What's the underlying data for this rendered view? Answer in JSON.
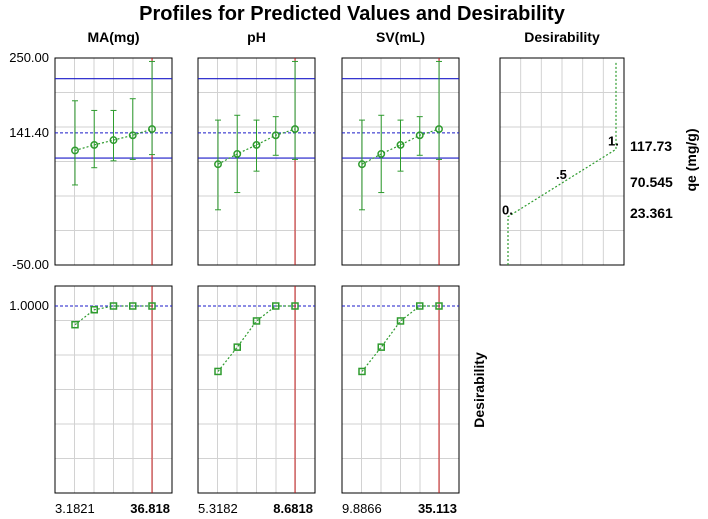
{
  "title": "Profiles for Predicted Values and Desirability",
  "colors": {
    "profile": "#2e9b2e",
    "limit_line": "#1a1ac8",
    "current_line": "#c81e1e",
    "grid": "#d2d2d2",
    "frame": "#000000"
  },
  "chart_data": {
    "type": "line",
    "title": "Profiles for Predicted Values and Desirability",
    "top_row": {
      "response": "qe (mg/g)",
      "ylim": [
        -50.0,
        250.0
      ],
      "y_tick_labels": [
        "250.00",
        "141.40",
        "-50.00"
      ],
      "current_value": 141.4,
      "limit_lines": [
        220.0,
        105.0
      ],
      "panels": [
        {
          "factor": "MA(mg)",
          "x_min_label": "3.1821",
          "x_max_label": "36.818",
          "x": [
            3.1821,
            11.591,
            20.0,
            28.409,
            36.818
          ],
          "y": [
            116,
            124,
            131,
            138,
            147
          ],
          "ci_low": [
            66,
            91,
            101,
            103,
            110
          ],
          "ci_high": [
            188,
            174,
            174,
            191,
            245
          ]
        },
        {
          "factor": "pH",
          "x_min_label": "5.3182",
          "x_max_label": "8.6818",
          "x": [
            5.3182,
            6.1591,
            7.0,
            7.8409,
            8.6818
          ],
          "y": [
            96,
            111,
            124,
            138,
            147
          ],
          "ci_low": [
            30,
            55,
            86,
            109,
            103
          ],
          "ci_high": [
            160,
            167,
            160,
            165,
            245
          ]
        },
        {
          "factor": "SV(mL)",
          "x_min_label": "9.8866",
          "x_max_label": "35.113",
          "x": [
            9.8866,
            16.193,
            22.5,
            28.806,
            35.113
          ],
          "y": [
            96,
            111,
            124,
            138,
            147
          ],
          "ci_low": [
            30,
            55,
            86,
            109,
            103
          ],
          "ci_high": [
            160,
            167,
            160,
            165,
            245
          ]
        }
      ]
    },
    "bottom_row": {
      "response": "Desirability",
      "ylim": [
        0.0,
        1.0
      ],
      "y_tick_labels": [
        "1.0000"
      ],
      "current_value": 1.0,
      "panels": [
        {
          "factor": "MA(mg)",
          "x": [
            3.1821,
            11.591,
            20.0,
            28.409,
            36.818
          ],
          "y": [
            0.9,
            0.98,
            1.0,
            1.0,
            1.0
          ]
        },
        {
          "factor": "pH",
          "x": [
            5.3182,
            6.1591,
            7.0,
            7.8409,
            8.6818
          ],
          "y": [
            0.65,
            0.78,
            0.92,
            1.0,
            1.0
          ]
        },
        {
          "factor": "SV(mL)",
          "x": [
            9.8866,
            16.193,
            22.5,
            28.806,
            35.113
          ],
          "y": [
            0.65,
            0.78,
            0.92,
            1.0,
            1.0
          ]
        }
      ]
    },
    "desirability_function": {
      "title": "Desirability",
      "ylabel": "qe (mg/g)",
      "y_tick_labels": [
        "117.73",
        "70.545",
        "23.361"
      ],
      "points_text": [
        "0.",
        ".5",
        "1."
      ],
      "curve": [
        [
          0.0,
          20
        ],
        [
          1.0,
          117.73
        ],
        [
          1.0,
          245
        ]
      ]
    }
  }
}
